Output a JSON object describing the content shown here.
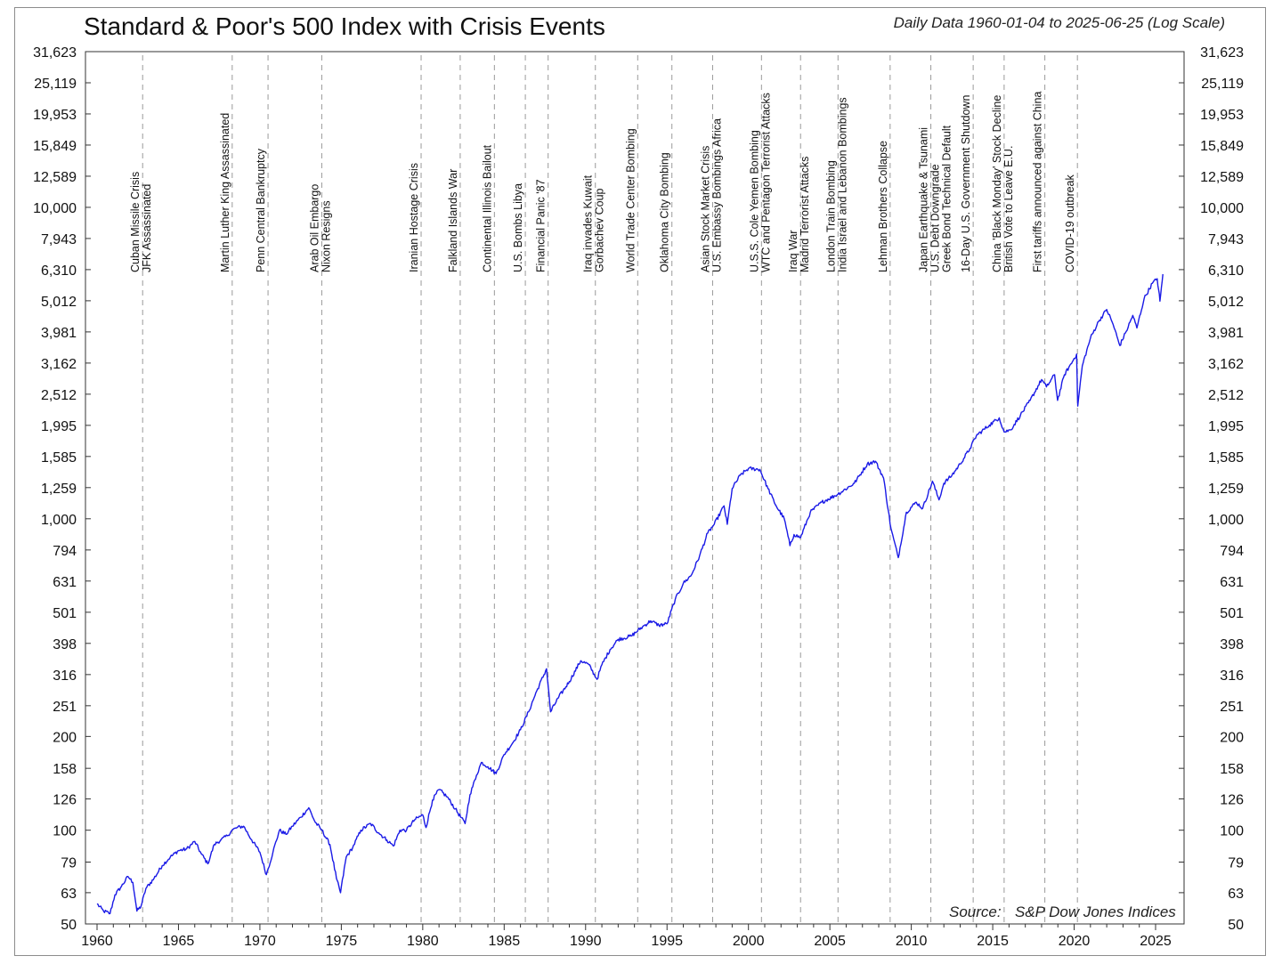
{
  "chart_data": {
    "type": "line",
    "title": "Standard & Poor's 500 Index with Crisis Events",
    "subtitle": "Daily Data 1960-01-04 to 2025-06-25 (Log Scale)",
    "source_label": "Source:",
    "source": "S&P Dow Jones Indices",
    "y_scale": "log",
    "ylim": [
      50,
      31623
    ],
    "xlim": [
      1960,
      2025.5
    ],
    "grid": false,
    "y_ticks": [
      31623,
      25119,
      19953,
      15849,
      12589,
      10000,
      7943,
      6310,
      5012,
      3981,
      3162,
      2512,
      1995,
      1585,
      1259,
      1000,
      794,
      631,
      501,
      398,
      316,
      251,
      200,
      158,
      126,
      100,
      79,
      63,
      50
    ],
    "y_tick_labels": [
      "31,623",
      "25,119",
      "19,953",
      "15,849",
      "12,589",
      "10,000",
      "7,943",
      "6,310",
      "5,012",
      "3,981",
      "3,162",
      "2,512",
      "1,995",
      "1,585",
      "1,259",
      "1,000",
      "794",
      "631",
      "501",
      "398",
      "316",
      "251",
      "200",
      "158",
      "126",
      "100",
      "79",
      "63",
      "50"
    ],
    "x_ticks": [
      1960,
      1965,
      1970,
      1975,
      1980,
      1985,
      1990,
      1995,
      2000,
      2005,
      2010,
      2015,
      2020,
      2025
    ],
    "x_tick_labels": [
      "1960",
      "1965",
      "1970",
      "1975",
      "1980",
      "1985",
      "1990",
      "1995",
      "2000",
      "2005",
      "2010",
      "2015",
      "2020",
      "2025"
    ],
    "line_color": "#1a1ae6",
    "events": [
      {
        "year": 1962.8,
        "labels": [
          "Cuban Missile Crisis",
          "JFK Assassinated"
        ]
      },
      {
        "year": 1968.3,
        "labels": [
          "Martin Luther King Assassinated"
        ]
      },
      {
        "year": 1970.5,
        "labels": [
          "Penn Central Bankruptcy"
        ]
      },
      {
        "year": 1973.8,
        "labels": [
          "Arab Oil Embargo",
          "Nixon Resigns"
        ]
      },
      {
        "year": 1979.9,
        "labels": [
          "Iranian Hostage Crisis"
        ]
      },
      {
        "year": 1982.3,
        "labels": [
          "Falkland Islands War"
        ]
      },
      {
        "year": 1984.4,
        "labels": [
          "Continental Illinois Bailout"
        ]
      },
      {
        "year": 1986.3,
        "labels": [
          "U.S. Bombs Libya"
        ]
      },
      {
        "year": 1987.7,
        "labels": [
          "Financial Panic '87"
        ]
      },
      {
        "year": 1990.6,
        "labels": [
          "Iraq invades Kuwait",
          "Gorbachev Coup"
        ]
      },
      {
        "year": 1993.2,
        "labels": [
          "World Trade Center Bombing"
        ]
      },
      {
        "year": 1995.3,
        "labels": [
          "Oklahoma City Bombing"
        ]
      },
      {
        "year": 1997.8,
        "labels": [
          "Asian Stock Market Crisis",
          "U.S. Embassy Bombings Africa"
        ]
      },
      {
        "year": 2000.8,
        "labels": [
          "U.S.S. Cole Yemen Bombing",
          "WTC and Pentagon Terrorist Attacks"
        ]
      },
      {
        "year": 2003.2,
        "labels": [
          "Iraq War",
          "Madrid Terrorist Attacks"
        ]
      },
      {
        "year": 2005.5,
        "labels": [
          "London Train Bombing",
          "India Israel and Lebanon Bombings"
        ]
      },
      {
        "year": 2008.7,
        "labels": [
          "Lehman Brothers Collapse"
        ]
      },
      {
        "year": 2011.2,
        "labels": [
          "Japan Earthquake & Tsunami",
          "U.S. Debt Downgrade",
          "Greek Bond Technical Default"
        ]
      },
      {
        "year": 2013.8,
        "labels": [
          "16-Day U.S. Government Shutdown"
        ]
      },
      {
        "year": 2015.7,
        "labels": [
          "China 'Black Monday' Stock Decline",
          "British Vote to Leave E.U."
        ]
      },
      {
        "year": 2018.2,
        "labels": [
          "First tariffs announced against China"
        ]
      },
      {
        "year": 2020.2,
        "labels": [
          "COVID-19 outbreak"
        ]
      }
    ],
    "series": [
      {
        "name": "",
        "x": [
          1960.0,
          1960.4,
          1960.8,
          1961.1,
          1961.5,
          1961.9,
          1962.2,
          1962.45,
          1962.7,
          1963.0,
          1963.5,
          1964.0,
          1964.5,
          1965.0,
          1965.5,
          1966.0,
          1966.4,
          1966.8,
          1967.2,
          1967.6,
          1968.0,
          1968.3,
          1968.6,
          1969.0,
          1969.5,
          1970.0,
          1970.4,
          1970.8,
          1971.2,
          1971.6,
          1972.0,
          1972.5,
          1973.0,
          1973.4,
          1973.8,
          1974.3,
          1974.7,
          1974.95,
          1975.3,
          1975.7,
          1976.2,
          1976.8,
          1977.3,
          1977.8,
          1978.2,
          1978.6,
          1979.0,
          1979.5,
          1980.0,
          1980.2,
          1980.6,
          1981.0,
          1981.5,
          1982.0,
          1982.6,
          1982.9,
          1983.3,
          1983.6,
          1984.0,
          1984.5,
          1985.0,
          1985.5,
          1986.0,
          1986.5,
          1987.0,
          1987.6,
          1987.85,
          1988.3,
          1989.0,
          1989.7,
          1990.2,
          1990.7,
          1991.0,
          1991.5,
          1992.0,
          1992.8,
          1993.5,
          1994.0,
          1994.5,
          1995.0,
          1995.5,
          1996.0,
          1996.5,
          1997.0,
          1997.5,
          1997.9,
          1998.5,
          1998.7,
          1999.0,
          1999.5,
          2000.0,
          2000.7,
          2001.2,
          2001.7,
          2002.2,
          2002.55,
          2002.8,
          2003.2,
          2003.8,
          2004.5,
          2005.5,
          2006.5,
          2007.3,
          2007.8,
          2008.3,
          2008.75,
          2009.2,
          2009.7,
          2010.3,
          2010.7,
          2011.3,
          2011.7,
          2012.0,
          2012.5,
          2013.0,
          2013.6,
          2014.0,
          2014.8,
          2015.4,
          2015.7,
          2016.1,
          2016.7,
          2017.3,
          2018.0,
          2018.3,
          2018.8,
          2018.98,
          2019.4,
          2019.9,
          2020.15,
          2020.22,
          2020.5,
          2021.0,
          2021.5,
          2022.0,
          2022.4,
          2022.8,
          2023.2,
          2023.6,
          2023.85,
          2024.3,
          2024.8,
          2025.1,
          2025.27,
          2025.45
        ],
        "values": [
          58,
          55,
          54,
          62,
          66,
          71,
          68,
          55,
          57,
          65,
          70,
          77,
          82,
          86,
          87,
          92,
          84,
          78,
          90,
          93,
          96,
          100,
          102,
          103,
          93,
          85,
          72,
          85,
          100,
          97,
          103,
          110,
          118,
          106,
          100,
          90,
          70,
          63,
          82,
          88,
          100,
          105,
          98,
          93,
          89,
          100,
          100,
          108,
          112,
          102,
          125,
          135,
          128,
          117,
          105,
          130,
          150,
          165,
          160,
          152,
          175,
          190,
          210,
          240,
          280,
          330,
          240,
          265,
          300,
          350,
          340,
          305,
          340,
          380,
          410,
          420,
          450,
          470,
          455,
          460,
          550,
          620,
          660,
          760,
          900,
          960,
          1100,
          960,
          1250,
          1380,
          1450,
          1440,
          1250,
          1100,
          1000,
          820,
          890,
          870,
          1050,
          1130,
          1200,
          1300,
          1500,
          1530,
          1350,
          930,
          750,
          1050,
          1130,
          1080,
          1320,
          1150,
          1300,
          1380,
          1500,
          1680,
          1850,
          2000,
          2110,
          1900,
          1930,
          2150,
          2400,
          2800,
          2650,
          2900,
          2400,
          2900,
          3200,
          3380,
          2300,
          3100,
          3800,
          4300,
          4700,
          4200,
          3600,
          4000,
          4500,
          4100,
          5100,
          5700,
          5900,
          5000,
          6100
        ]
      }
    ]
  }
}
